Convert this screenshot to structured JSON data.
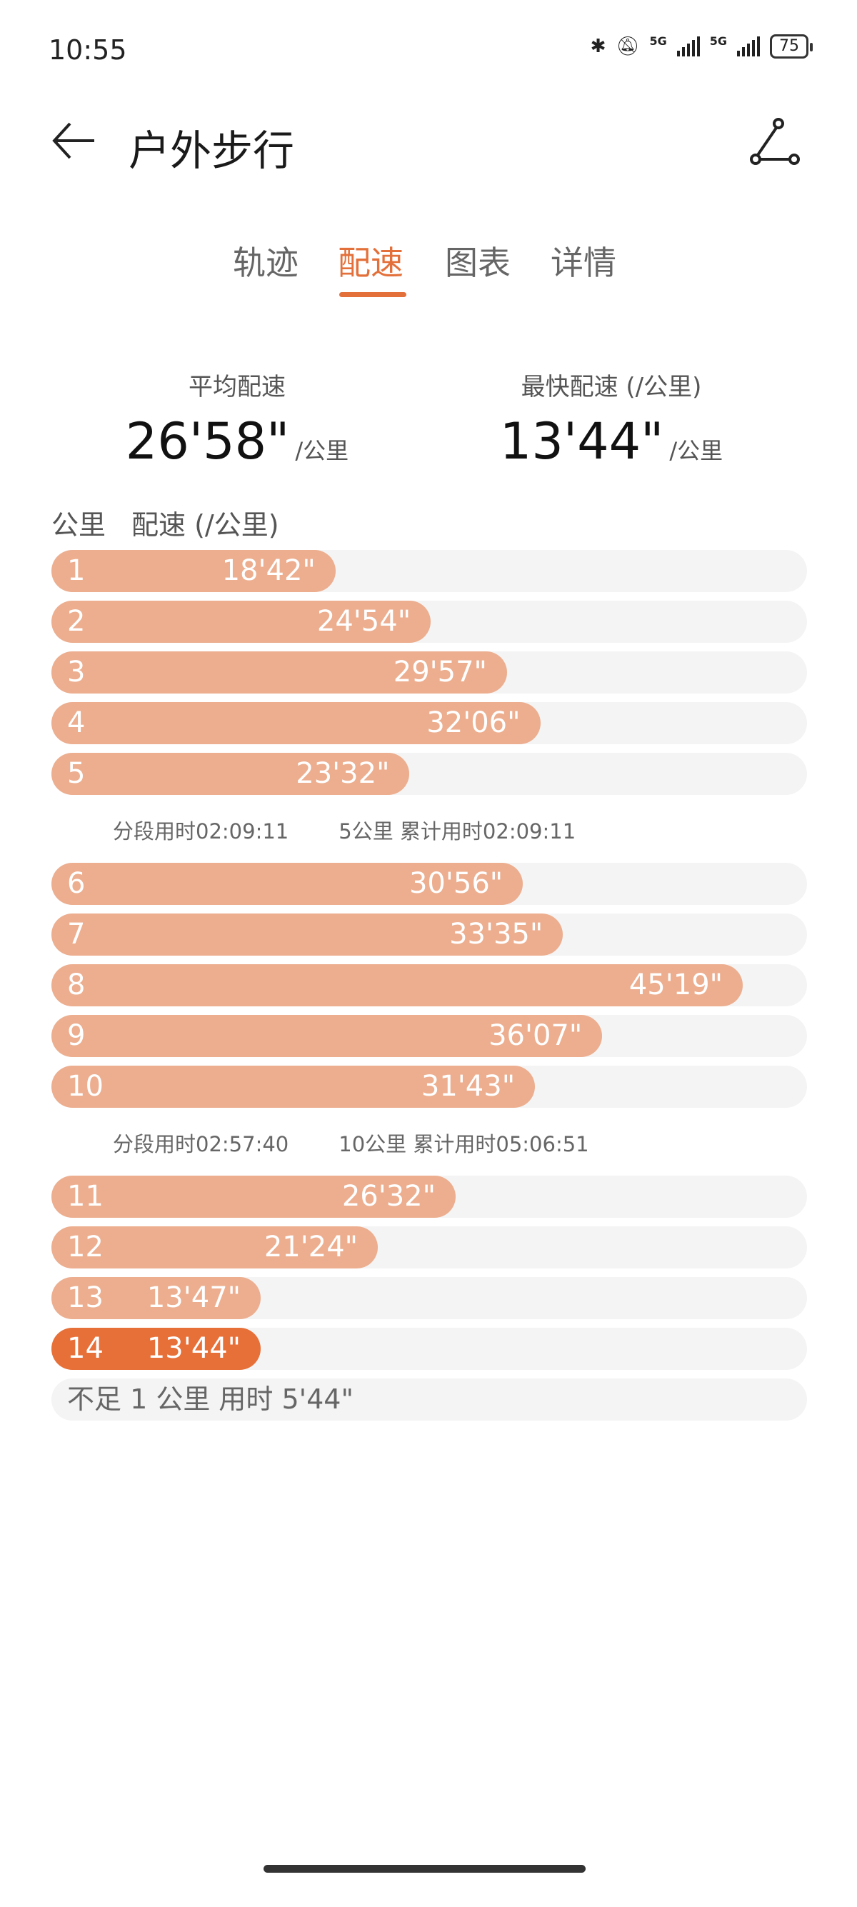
{
  "status_bar": {
    "time": "10:55",
    "network1": "5G",
    "network2": "5G",
    "battery": "75"
  },
  "header": {
    "title": "户外步行"
  },
  "tabs": [
    {
      "label": "轨迹",
      "active": false
    },
    {
      "label": "配速",
      "active": true
    },
    {
      "label": "图表",
      "active": false
    },
    {
      "label": "详情",
      "active": false
    }
  ],
  "summary": {
    "avg_label": "平均配速",
    "avg_value": "26'58\"",
    "avg_unit": "/公里",
    "fast_label": "最快配速 (/公里)",
    "fast_value": "13'44\"",
    "fast_unit": "/公里"
  },
  "list_header": {
    "km": "公里",
    "pace": "配速 (/公里)"
  },
  "colors": {
    "accent": "#e3703a",
    "bar": "#ecae8f",
    "fastest": "#e76f38",
    "track": "#f4f4f4"
  },
  "groups": [
    {
      "rows": [
        {
          "km": "1",
          "pace": "18'42\"",
          "fill": 0.376
        },
        {
          "km": "2",
          "pace": "24'54\"",
          "fill": 0.502
        },
        {
          "km": "3",
          "pace": "29'57\"",
          "fill": 0.603
        },
        {
          "km": "4",
          "pace": "32'06\"",
          "fill": 0.647
        },
        {
          "km": "5",
          "pace": "23'32\"",
          "fill": 0.474
        }
      ],
      "split": {
        "segment": "分段用时02:09:11",
        "cumulative": "5公里 累计用时02:09:11"
      }
    },
    {
      "rows": [
        {
          "km": "6",
          "pace": "30'56\"",
          "fill": 0.624
        },
        {
          "km": "7",
          "pace": "33'35\"",
          "fill": 0.677
        },
        {
          "km": "8",
          "pace": "45'19\"",
          "fill": 0.915
        },
        {
          "km": "9",
          "pace": "36'07\"",
          "fill": 0.729
        },
        {
          "km": "10",
          "pace": "31'43\"",
          "fill": 0.64
        }
      ],
      "split": {
        "segment": "分段用时02:57:40",
        "cumulative": "10公里 累计用时05:06:51"
      }
    },
    {
      "rows": [
        {
          "km": "11",
          "pace": "26'32\"",
          "fill": 0.535
        },
        {
          "km": "12",
          "pace": "21'24\"",
          "fill": 0.432
        },
        {
          "km": "13",
          "pace": "13'47\"",
          "fill": 0.277
        },
        {
          "km": "14",
          "pace": "13'44\"",
          "fill": 0.277,
          "fastest": true
        }
      ]
    }
  ],
  "remainder": "不足 1 公里 用时 5'44\""
}
